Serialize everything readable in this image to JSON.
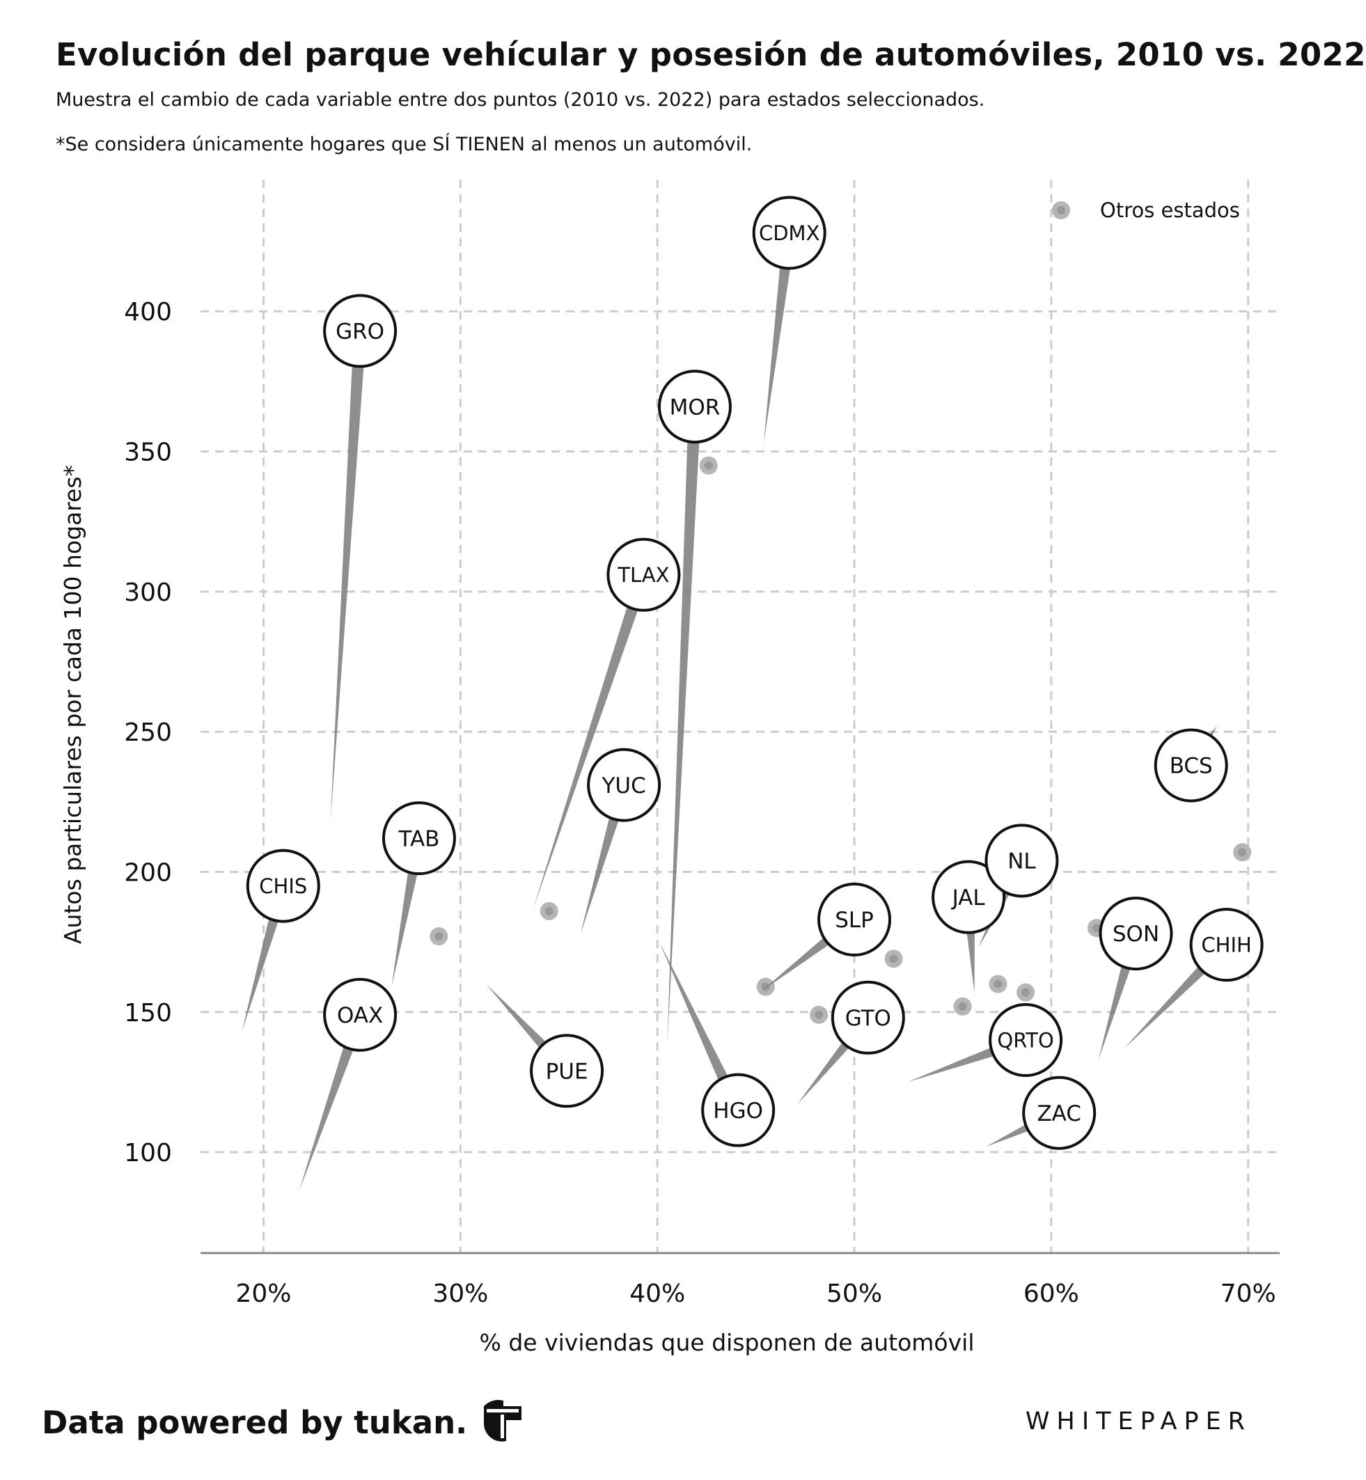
{
  "header": {
    "title": "Evolución del parque vehícular y posesión de automóviles, 2010 vs. 2022",
    "subtitle": "Muestra el cambio de cada variable entre dos puntos (2010 vs. 2022) para estados seleccionados.",
    "note": "*Se considera únicamente hogares que SÍ TIENEN al menos un automóvil."
  },
  "footer": {
    "credit": "Data powered by tukan.",
    "brand": "WHITEPAPER"
  },
  "colors": {
    "grid": "#cccccc",
    "axis": "#888888",
    "stem": "#7a7a7a",
    "other_states": "#b5b5b5",
    "bubble_fill": "#ffffff",
    "bubble_stroke": "#111111"
  },
  "chart_data": {
    "type": "scatter",
    "xlabel": "% de viviendas que disponen de automóvil",
    "ylabel": "Autos particulares por cada 100 hogares*",
    "x_ticks": [
      "20%",
      "30%",
      "40%",
      "50%",
      "60%",
      "70%"
    ],
    "x_tick_values": [
      0.2,
      0.3,
      0.4,
      0.5,
      0.6,
      0.7
    ],
    "y_ticks": [
      "100",
      "150",
      "200",
      "250",
      "300",
      "350",
      "400"
    ],
    "y_tick_values": [
      100,
      150,
      200,
      250,
      300,
      350,
      400
    ],
    "xlim": [
      0.168,
      0.716
    ],
    "ylim": [
      64,
      447
    ],
    "grid": true,
    "legend": {
      "position": "top-right",
      "label": "Otros estados"
    },
    "series": [
      {
        "name": "Otros estados",
        "points": [
          {
            "x": 0.289,
            "y": 177
          },
          {
            "x": 0.345,
            "y": 186
          },
          {
            "x": 0.426,
            "y": 345
          },
          {
            "x": 0.455,
            "y": 159
          },
          {
            "x": 0.482,
            "y": 149
          },
          {
            "x": 0.52,
            "y": 169
          },
          {
            "x": 0.555,
            "y": 152
          },
          {
            "x": 0.573,
            "y": 160
          },
          {
            "x": 0.587,
            "y": 157
          },
          {
            "x": 0.623,
            "y": 180
          },
          {
            "x": 0.697,
            "y": 207
          }
        ]
      }
    ],
    "states": [
      {
        "label": "GRO",
        "x2010": 0.234,
        "y2010": 218,
        "x2022": 0.249,
        "y2022": 393
      },
      {
        "label": "CHIS",
        "x2010": 0.189,
        "y2010": 143,
        "x2022": 0.21,
        "y2022": 195
      },
      {
        "label": "TAB",
        "x2010": 0.265,
        "y2010": 159,
        "x2022": 0.279,
        "y2022": 212
      },
      {
        "label": "OAX",
        "x2010": 0.218,
        "y2010": 86,
        "x2022": 0.249,
        "y2022": 149
      },
      {
        "label": "PUE",
        "x2010": 0.313,
        "y2010": 160,
        "x2022": 0.354,
        "y2022": 129
      },
      {
        "label": "YUC",
        "x2010": 0.361,
        "y2010": 178,
        "x2022": 0.383,
        "y2022": 231
      },
      {
        "label": "TLAX",
        "x2010": 0.337,
        "y2010": 187,
        "x2022": 0.393,
        "y2022": 306
      },
      {
        "label": "MOR",
        "x2010": 0.405,
        "y2010": 138,
        "x2022": 0.419,
        "y2022": 366
      },
      {
        "label": "CDMX",
        "x2010": 0.454,
        "y2010": 353,
        "x2022": 0.467,
        "y2022": 428
      },
      {
        "label": "HGO",
        "x2010": 0.401,
        "y2010": 175,
        "x2022": 0.441,
        "y2022": 115
      },
      {
        "label": "SLP",
        "x2010": 0.452,
        "y2010": 157,
        "x2022": 0.5,
        "y2022": 183
      },
      {
        "label": "GTO",
        "x2010": 0.471,
        "y2010": 117,
        "x2022": 0.507,
        "y2022": 148
      },
      {
        "label": "JAL",
        "x2010": 0.561,
        "y2010": 157,
        "x2022": 0.558,
        "y2022": 191
      },
      {
        "label": "NL",
        "x2010": 0.563,
        "y2010": 173,
        "x2022": 0.585,
        "y2022": 204
      },
      {
        "label": "QRTO",
        "x2010": 0.527,
        "y2010": 125,
        "x2022": 0.587,
        "y2022": 140
      },
      {
        "label": "ZAC",
        "x2010": 0.567,
        "y2010": 102,
        "x2022": 0.604,
        "y2022": 114
      },
      {
        "label": "SON",
        "x2010": 0.624,
        "y2010": 133,
        "x2022": 0.643,
        "y2022": 178
      },
      {
        "label": "CHIH",
        "x2010": 0.637,
        "y2010": 137,
        "x2022": 0.689,
        "y2022": 174
      },
      {
        "label": "BCS",
        "x2010": 0.684,
        "y2010": 252,
        "x2022": 0.671,
        "y2022": 238
      }
    ]
  }
}
